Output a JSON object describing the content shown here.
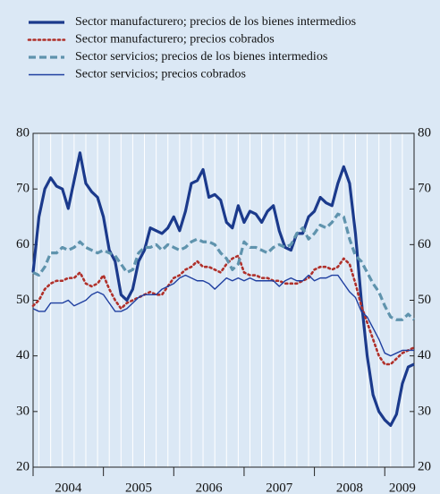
{
  "chart_data": {
    "type": "line",
    "categories": [
      null,
      null,
      null,
      null,
      null,
      null,
      "2004",
      null,
      null,
      null,
      null,
      null,
      null,
      null,
      null,
      null,
      null,
      null,
      "2005",
      null,
      null,
      null,
      null,
      null,
      null,
      null,
      null,
      null,
      null,
      null,
      "2006",
      null,
      null,
      null,
      null,
      null,
      null,
      null,
      null,
      null,
      null,
      null,
      "2007",
      null,
      null,
      null,
      null,
      null,
      null,
      null,
      null,
      null,
      null,
      null,
      "2008",
      null,
      null,
      null,
      null,
      null,
      null,
      null,
      null,
      "2009",
      null,
      null
    ],
    "series": [
      {
        "name": "Sector manufacturero; precios de los bienes intermedios",
        "color": "#1b3a8c",
        "line_style": "solid",
        "line_width": 3.2,
        "values": [
          55,
          65,
          70,
          72,
          70.5,
          70,
          66.5,
          71.5,
          76.5,
          71,
          69.5,
          68.5,
          65,
          59,
          57,
          51,
          50,
          52,
          57,
          59,
          63,
          62.5,
          62,
          63,
          65,
          62.5,
          66,
          71,
          71.5,
          73.5,
          68.5,
          69,
          68,
          64,
          63,
          67,
          64,
          66,
          65.5,
          64,
          66,
          67,
          62.5,
          59.5,
          59,
          62,
          62,
          65,
          66,
          68.5,
          67.5,
          67,
          71,
          74,
          71,
          62,
          50,
          40,
          33,
          30,
          28.5,
          27.5,
          29.5,
          35,
          38,
          38.5
        ]
      },
      {
        "name": "Sector manufacturero; precios cobrados",
        "color": "#b0302a",
        "line_style": "dotted",
        "line_width": 2.6,
        "values": [
          49,
          50,
          52,
          53,
          53.5,
          53.5,
          54,
          54,
          55,
          53,
          52.5,
          53,
          54.5,
          52,
          50,
          48.5,
          49.5,
          50,
          50.5,
          51,
          51.5,
          51,
          51,
          52.5,
          54,
          54.5,
          55.5,
          56,
          57,
          56,
          56,
          55.5,
          55,
          56.5,
          57.5,
          58,
          55,
          54.5,
          54.5,
          54,
          54,
          53.5,
          53.5,
          53,
          53,
          53,
          53.5,
          54,
          55.5,
          56,
          56,
          55.5,
          56,
          57.5,
          56.5,
          53,
          49,
          46,
          43,
          40,
          38.5,
          38.5,
          39.5,
          40.5,
          41,
          41.5
        ]
      },
      {
        "name": "Sector servicios; precios de los bienes intermedios",
        "color": "#5f93ad",
        "line_style": "dashed",
        "line_width": 3.2,
        "values": [
          55,
          54.5,
          56,
          58.5,
          58.5,
          59.5,
          59,
          59.5,
          60.5,
          59.5,
          59,
          58.5,
          59,
          58.5,
          58,
          56.5,
          55,
          55.5,
          58.5,
          59.5,
          59.5,
          60,
          59,
          60,
          59.5,
          59,
          59.5,
          60.5,
          61,
          60.5,
          60.5,
          60,
          58.5,
          57.5,
          55.5,
          56.5,
          60.5,
          59.5,
          59.5,
          59,
          58.5,
          59.5,
          60,
          59.5,
          60,
          62,
          63,
          61,
          62,
          63.5,
          63,
          64,
          65.5,
          65,
          61,
          58,
          57,
          55,
          53,
          51.5,
          49,
          47,
          46.5,
          46.5,
          47.5,
          46.5
        ]
      },
      {
        "name": "Sector servicios; precios cobrados",
        "color": "#1f3fa0",
        "line_style": "solid",
        "line_width": 1.4,
        "values": [
          48.5,
          48,
          48,
          49.5,
          49.5,
          49.5,
          50,
          49,
          49.5,
          50,
          51,
          51.5,
          51,
          49.5,
          48,
          48,
          48.5,
          49.5,
          50.5,
          51,
          51,
          51,
          52,
          52.5,
          53,
          54,
          54.5,
          54,
          53.5,
          53.5,
          53,
          52,
          53,
          54,
          53.5,
          54,
          53.5,
          54,
          53.5,
          53.5,
          53.5,
          53.5,
          52.5,
          53.5,
          54,
          53.5,
          53.5,
          54.5,
          53.5,
          54,
          54,
          54.5,
          54.5,
          53,
          51.5,
          50.5,
          48,
          47,
          45,
          43,
          40.5,
          40,
          40.5,
          41,
          41,
          41
        ]
      }
    ],
    "ylim": [
      20,
      80
    ],
    "yticks": [
      20,
      30,
      40,
      50,
      60,
      70,
      80
    ]
  }
}
